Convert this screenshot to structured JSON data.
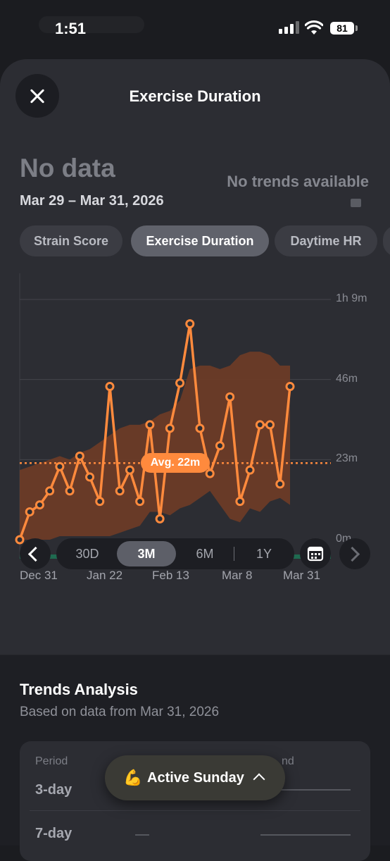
{
  "status_bar": {
    "time": "1:51",
    "battery": "81"
  },
  "sheet": {
    "title": "Exercise Duration",
    "metric_value": "No data",
    "date_range": "Mar 29 – Mar 31, 2026",
    "trend_text": "No trends available"
  },
  "metric_tabs": [
    {
      "label": "Strain Score",
      "selected": false
    },
    {
      "label": "Exercise Duration",
      "selected": true
    },
    {
      "label": "Daytime HR",
      "selected": false
    }
  ],
  "chart_data": {
    "type": "line",
    "series": [
      {
        "values": [
          0,
          8,
          10,
          14,
          21,
          14,
          24,
          18,
          11,
          44,
          14,
          20,
          11,
          33,
          6,
          32,
          45,
          62,
          32,
          19,
          27,
          41,
          11,
          20,
          33,
          33,
          16,
          44
        ]
      }
    ],
    "band_low": [
      0,
      0,
      0,
      0,
      1,
      1,
      1,
      1,
      1,
      1,
      2,
      3,
      4,
      8,
      8,
      7,
      9,
      10,
      12,
      14,
      10,
      6,
      5,
      9,
      8,
      11,
      12,
      10
    ],
    "band_high": [
      20,
      21,
      22,
      23,
      24,
      23,
      25,
      26,
      28,
      30,
      32,
      33,
      33,
      34,
      36,
      37,
      40,
      49,
      50,
      50,
      49,
      50,
      53,
      54,
      54,
      53,
      50,
      50
    ],
    "average": 22,
    "average_label": "Avg. 22m",
    "x_tick_labels": [
      "Dec 31",
      "Jan 22",
      "Feb 13",
      "Mar 8",
      "Mar 31"
    ],
    "y_tick_labels": [
      "1h 9m",
      "46m",
      "23m",
      "0m"
    ],
    "y_ticks": [
      69,
      46,
      23,
      0
    ],
    "ylim": [
      0,
      69
    ],
    "grid": true,
    "line_color": "#ff8a3d",
    "band_color": "#6e3c26"
  },
  "time_range": {
    "options": [
      "30D",
      "3M",
      "6M",
      "1Y"
    ],
    "selected": "3M"
  },
  "trends": {
    "title": "Trends Analysis",
    "subtitle": "Based on data from Mar 31, 2026",
    "column_period": "Period",
    "column_trend": "nd",
    "rows": [
      "3-day",
      "7-day"
    ]
  },
  "toast": {
    "emoji": "💪",
    "label": "Active Sunday"
  },
  "colors": {
    "accent": "#ff8a3d",
    "sheet": "#2c2d33",
    "background": "#1b1c20"
  }
}
